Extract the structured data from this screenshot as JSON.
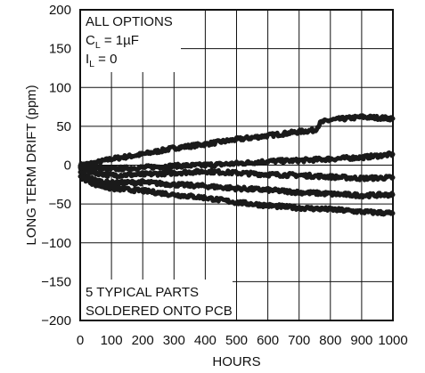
{
  "chart_data": {
    "type": "line",
    "xlabel": "HOURS",
    "ylabel": "LONG TERM DRIFT (ppm)",
    "xlim": [
      0,
      1000
    ],
    "ylim": [
      -200,
      200
    ],
    "x_ticks": [
      "0",
      "100",
      "200",
      "300",
      "400",
      "500",
      "600",
      "700",
      "800",
      "900",
      "1000"
    ],
    "y_ticks": [
      "200",
      "150",
      "100",
      "50",
      "0",
      "−50",
      "−100",
      "−150",
      "−200"
    ],
    "grid": true,
    "annotation_top": {
      "line1": "ALL OPTIONS",
      "line2_main": "C",
      "line2_sub": "L",
      "line2_rest": " = 1µF",
      "line3_main": "I",
      "line3_sub": "L",
      "line3_rest": " = 0"
    },
    "annotation_bottom": [
      "5 TYPICAL PARTS",
      "SOLDERED ONTO PCB"
    ],
    "series": [
      {
        "x": [
          0,
          50,
          100,
          200,
          300,
          400,
          500,
          600,
          700,
          750,
          770,
          800,
          900,
          1000
        ],
        "values": [
          0,
          3,
          8,
          14,
          22,
          27,
          33,
          38,
          43,
          45,
          55,
          58,
          62,
          60
        ]
      },
      {
        "x": [
          0,
          50,
          100,
          200,
          300,
          400,
          500,
          600,
          700,
          800,
          900,
          1000
        ],
        "values": [
          -2,
          -4,
          -5,
          -3,
          -1,
          0,
          2,
          5,
          6,
          8,
          10,
          14
        ]
      },
      {
        "x": [
          0,
          50,
          100,
          200,
          300,
          400,
          500,
          600,
          700,
          800,
          900,
          1000
        ],
        "values": [
          -5,
          -10,
          -13,
          -12,
          -10,
          -8,
          -10,
          -12,
          -13,
          -15,
          -17,
          -16
        ]
      },
      {
        "x": [
          0,
          50,
          100,
          200,
          300,
          400,
          500,
          600,
          700,
          800,
          900,
          1000
        ],
        "values": [
          -10,
          -20,
          -23,
          -22,
          -25,
          -27,
          -30,
          -32,
          -35,
          -37,
          -39,
          -38
        ]
      },
      {
        "x": [
          0,
          50,
          100,
          200,
          300,
          400,
          500,
          600,
          700,
          800,
          900,
          1000
        ],
        "values": [
          -15,
          -25,
          -30,
          -33,
          -38,
          -42,
          -48,
          -52,
          -55,
          -57,
          -60,
          -62
        ]
      }
    ]
  }
}
